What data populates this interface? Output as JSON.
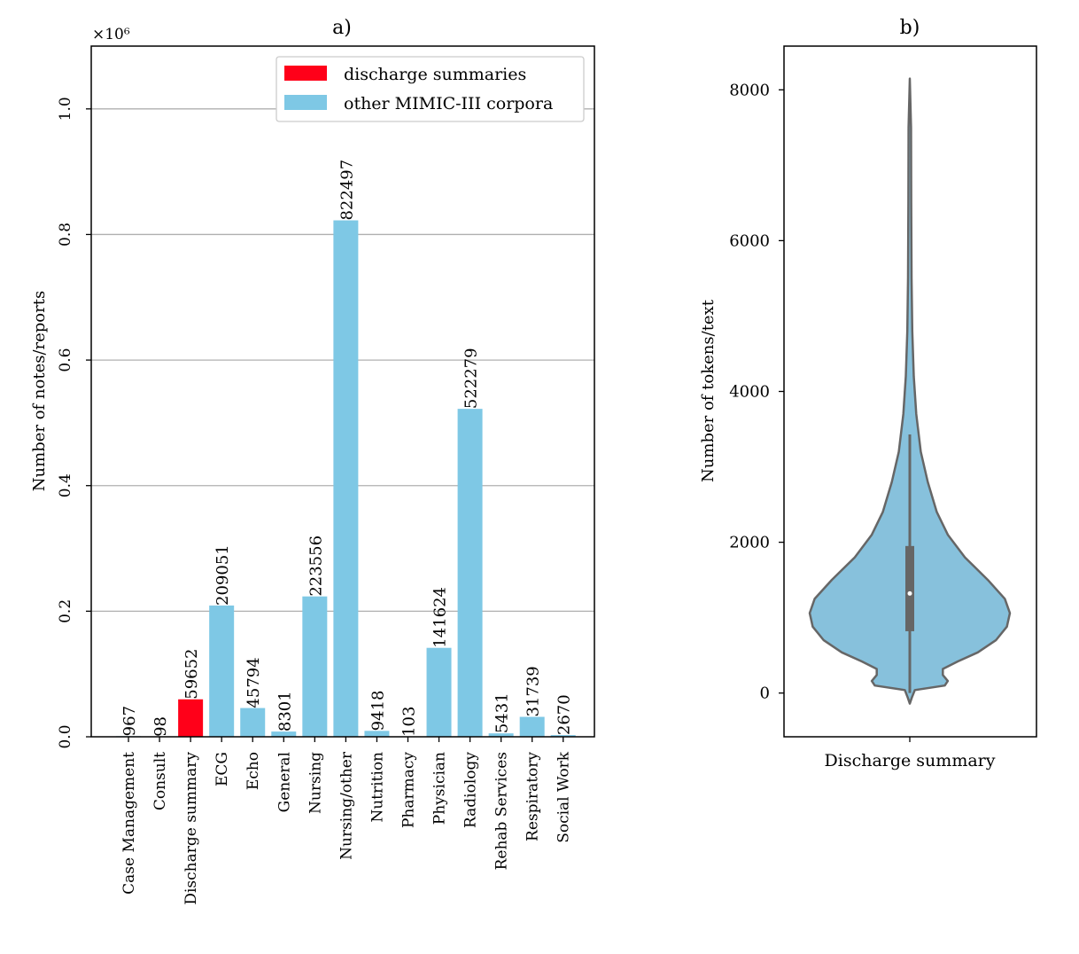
{
  "chart_data": [
    {
      "panel": "a)",
      "type": "bar",
      "title": "a)",
      "xlabel": "",
      "ylabel": "Number of notes/reports",
      "y_multiplier_label": "×10⁶",
      "ylim": [
        0,
        1100000
      ],
      "yticks": [
        0,
        200000,
        400000,
        600000,
        800000,
        1000000
      ],
      "ytick_labels": [
        "0.0",
        "0.2",
        "0.4",
        "0.6",
        "0.8",
        "1.0"
      ],
      "grid": "y",
      "categories": [
        "Case Management",
        "Consult",
        "Discharge summary",
        "ECG",
        "Echo",
        "General",
        "Nursing",
        "Nursing/other",
        "Nutrition",
        "Pharmacy",
        "Physician",
        "Radiology",
        "Rehab Services",
        "Respiratory",
        "Social Work"
      ],
      "values": [
        967,
        98,
        59652,
        209051,
        45794,
        8301,
        223556,
        822497,
        9418,
        103,
        141624,
        522279,
        5431,
        31739,
        2670
      ],
      "value_labels": [
        "967",
        "98",
        "59652",
        "209051",
        "45794",
        "8301",
        "223556",
        "822497",
        "9418",
        "103",
        "141624",
        "522279",
        "5431",
        "31739",
        "2670"
      ],
      "series_of": [
        "other",
        "other",
        "discharge",
        "other",
        "other",
        "other",
        "other",
        "other",
        "other",
        "other",
        "other",
        "other",
        "other",
        "other",
        "other"
      ],
      "legend": {
        "placement": "top-right",
        "entries": [
          {
            "key": "discharge",
            "label": "discharge summaries",
            "color": "#ff0019"
          },
          {
            "key": "other",
            "label": "other MIMIC-III corpora",
            "color": "#7ec8e5"
          }
        ]
      }
    },
    {
      "panel": "b)",
      "type": "violin",
      "title": "b)",
      "xlabel": "",
      "ylabel": "Number of tokens/text",
      "categories": [
        "Discharge summary"
      ],
      "ylim": [
        -580,
        8580
      ],
      "yticks": [
        0,
        2000,
        4000,
        6000,
        8000
      ],
      "ytick_labels": [
        "0",
        "2000",
        "4000",
        "6000",
        "8000"
      ],
      "color": "#87c1dc",
      "edge_color": "#666666",
      "min": -140,
      "max": 8150,
      "whisker_low": 0,
      "whisker_high": 3430,
      "q1": 820,
      "median": 1320,
      "q3": 1950,
      "density_profile": [
        {
          "y": -140,
          "w": 0.0
        },
        {
          "y": -60,
          "w": 0.02
        },
        {
          "y": 40,
          "w": 0.05
        },
        {
          "y": 100,
          "w": 0.35
        },
        {
          "y": 160,
          "w": 0.38
        },
        {
          "y": 240,
          "w": 0.33
        },
        {
          "y": 320,
          "w": 0.33
        },
        {
          "y": 420,
          "w": 0.48
        },
        {
          "y": 540,
          "w": 0.68
        },
        {
          "y": 700,
          "w": 0.86
        },
        {
          "y": 880,
          "w": 0.97
        },
        {
          "y": 1060,
          "w": 1.0
        },
        {
          "y": 1250,
          "w": 0.95
        },
        {
          "y": 1500,
          "w": 0.78
        },
        {
          "y": 1800,
          "w": 0.55
        },
        {
          "y": 2100,
          "w": 0.38
        },
        {
          "y": 2400,
          "w": 0.27
        },
        {
          "y": 2800,
          "w": 0.18
        },
        {
          "y": 3200,
          "w": 0.11
        },
        {
          "y": 3700,
          "w": 0.065
        },
        {
          "y": 4200,
          "w": 0.04
        },
        {
          "y": 4800,
          "w": 0.025
        },
        {
          "y": 5500,
          "w": 0.018
        },
        {
          "y": 6500,
          "w": 0.014
        },
        {
          "y": 7500,
          "w": 0.012
        },
        {
          "y": 8150,
          "w": 0.0
        }
      ]
    }
  ]
}
